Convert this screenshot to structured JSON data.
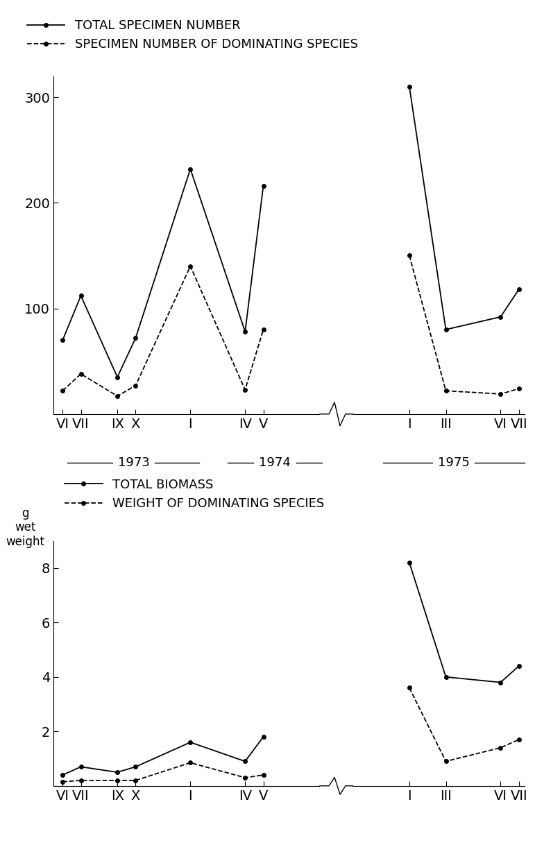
{
  "chart_data": [
    {
      "type": "line",
      "x": [
        6,
        7,
        9,
        10,
        13,
        16,
        17,
        21,
        25,
        27,
        30,
        31
      ],
      "xlim": [
        5.5,
        31.3
      ],
      "xticks": [
        {
          "value": 6,
          "label": "VI"
        },
        {
          "value": 7,
          "label": "VII"
        },
        {
          "value": 9,
          "label": "IX"
        },
        {
          "value": 10,
          "label": "X"
        },
        {
          "value": 13,
          "label": "I"
        },
        {
          "value": 16,
          "label": "IV"
        },
        {
          "value": 17,
          "label": "V"
        },
        {
          "value": 25,
          "label": "I"
        },
        {
          "value": 27,
          "label": "III"
        },
        {
          "value": 30,
          "label": "VI"
        },
        {
          "value": 31,
          "label": "VII"
        }
      ],
      "ylim": [
        0,
        320
      ],
      "yticks": [
        100,
        200,
        300
      ],
      "legend": "upper left",
      "annotations": [
        "1973",
        "1974",
        "1975"
      ],
      "series": [
        {
          "name": "TOTAL SPECIMEN NUMBER",
          "color": "#000000",
          "line_style": "solid",
          "marker": "o",
          "values": [
            70,
            112,
            35,
            72,
            232,
            78,
            216,
            null,
            310,
            80,
            92,
            118
          ]
        },
        {
          "name": "SPECIMEN NUMBER OF DOMINATING SPECIES",
          "color": "#000000",
          "line_style": "dashed",
          "marker": "o",
          "values": [
            22,
            38,
            17,
            27,
            140,
            23,
            80,
            null,
            150,
            22,
            19,
            24
          ]
        }
      ]
    },
    {
      "type": "line",
      "x": [
        6,
        7,
        9,
        10,
        13,
        16,
        17,
        21,
        25,
        27,
        30,
        31
      ],
      "xlim": [
        5.5,
        31.3
      ],
      "xticks": [
        {
          "value": 6,
          "label": "VI"
        },
        {
          "value": 7,
          "label": "VII"
        },
        {
          "value": 9,
          "label": "IX"
        },
        {
          "value": 10,
          "label": "X"
        },
        {
          "value": 13,
          "label": "I"
        },
        {
          "value": 16,
          "label": "IV"
        },
        {
          "value": 17,
          "label": "V"
        },
        {
          "value": 25,
          "label": "I"
        },
        {
          "value": 27,
          "label": "III"
        },
        {
          "value": 30,
          "label": "VI"
        },
        {
          "value": 31,
          "label": "VII"
        }
      ],
      "ylim": [
        0,
        9
      ],
      "yticks": [
        2,
        4,
        6,
        8
      ],
      "y_label": "g\nwet\nweight",
      "legend": "upper left",
      "series": [
        {
          "name": "TOTAL BIOMASS",
          "color": "#000000",
          "line_style": "solid",
          "marker": "o",
          "values": [
            0.4,
            0.7,
            0.5,
            0.7,
            1.6,
            0.9,
            1.8,
            null,
            8.2,
            4.0,
            3.8,
            4.4
          ]
        },
        {
          "name": "WEIGHT OF DOMINATING SPECIES",
          "color": "#000000",
          "line_style": "dashed",
          "marker": "o",
          "values": [
            0.15,
            0.2,
            0.2,
            0.2,
            0.85,
            0.3,
            0.4,
            null,
            3.6,
            0.9,
            1.4,
            1.7
          ]
        }
      ]
    }
  ]
}
